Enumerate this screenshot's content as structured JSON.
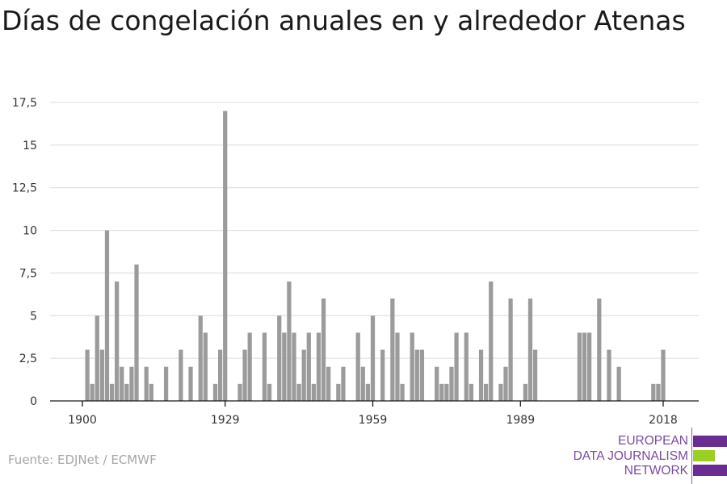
{
  "chart_data": {
    "type": "bar",
    "title": "Días de congelación anuales en y alrededor Atenas",
    "xlabel": "",
    "ylabel": "",
    "ylim": [
      0,
      17.5
    ],
    "yticks": [
      "0",
      "2,5",
      "5",
      "7,5",
      "10",
      "12,5",
      "15",
      "17,5"
    ],
    "ytick_values": [
      0,
      2.5,
      5,
      7.5,
      10,
      12.5,
      15,
      17.5
    ],
    "xticks": [
      "1900",
      "1929",
      "1959",
      "1989",
      "2018"
    ],
    "xtick_values": [
      1900,
      1929,
      1959,
      1989,
      2018
    ],
    "grid": true,
    "bar_color": "#9b9b9b",
    "x": [
      1900,
      1901,
      1902,
      1903,
      1904,
      1905,
      1906,
      1907,
      1908,
      1909,
      1910,
      1911,
      1912,
      1913,
      1914,
      1915,
      1916,
      1917,
      1918,
      1919,
      1920,
      1921,
      1922,
      1923,
      1924,
      1925,
      1926,
      1927,
      1928,
      1929,
      1930,
      1931,
      1932,
      1933,
      1934,
      1935,
      1936,
      1937,
      1938,
      1939,
      1940,
      1941,
      1942,
      1943,
      1944,
      1945,
      1946,
      1947,
      1948,
      1949,
      1950,
      1951,
      1952,
      1953,
      1954,
      1955,
      1956,
      1957,
      1958,
      1959,
      1960,
      1961,
      1962,
      1963,
      1964,
      1965,
      1966,
      1967,
      1968,
      1969,
      1970,
      1971,
      1972,
      1973,
      1974,
      1975,
      1976,
      1977,
      1978,
      1979,
      1980,
      1981,
      1982,
      1983,
      1984,
      1985,
      1986,
      1987,
      1988,
      1989,
      1990,
      1991,
      1992,
      1993,
      1994,
      1995,
      1996,
      1997,
      1998,
      1999,
      2000,
      2001,
      2002,
      2003,
      2004,
      2005,
      2006,
      2007,
      2008,
      2009,
      2010,
      2011,
      2012,
      2013,
      2014,
      2015,
      2016,
      2017,
      2018
    ],
    "values": [
      0,
      3,
      1,
      5,
      3,
      10,
      1,
      7,
      2,
      1,
      2,
      8,
      0,
      2,
      1,
      0,
      0,
      2,
      0,
      0,
      3,
      0,
      2,
      0,
      5,
      4,
      0,
      1,
      3,
      17,
      0,
      0,
      1,
      3,
      4,
      0,
      0,
      4,
      1,
      0,
      5,
      4,
      7,
      4,
      1,
      3,
      4,
      1,
      4,
      6,
      2,
      0,
      1,
      2,
      0,
      0,
      4,
      2,
      1,
      5,
      0,
      3,
      0,
      6,
      4,
      1,
      0,
      4,
      3,
      3,
      0,
      0,
      2,
      1,
      1,
      2,
      4,
      0,
      4,
      1,
      0,
      3,
      1,
      7,
      0,
      1,
      2,
      6,
      0,
      0,
      1,
      6,
      3,
      0,
      0,
      0,
      0,
      0,
      0,
      0,
      0,
      4,
      4,
      4,
      0,
      6,
      0,
      3,
      0,
      2,
      0,
      0,
      0,
      0,
      0,
      0,
      1,
      1,
      3
    ]
  },
  "source": "Fuente: EDJNet / ECMWF",
  "logo": {
    "lines": [
      "EUROPEAN",
      "DATA JOURNALISM",
      "NETWORK"
    ],
    "purple": "#6a2c91",
    "green": "#9ad024"
  }
}
